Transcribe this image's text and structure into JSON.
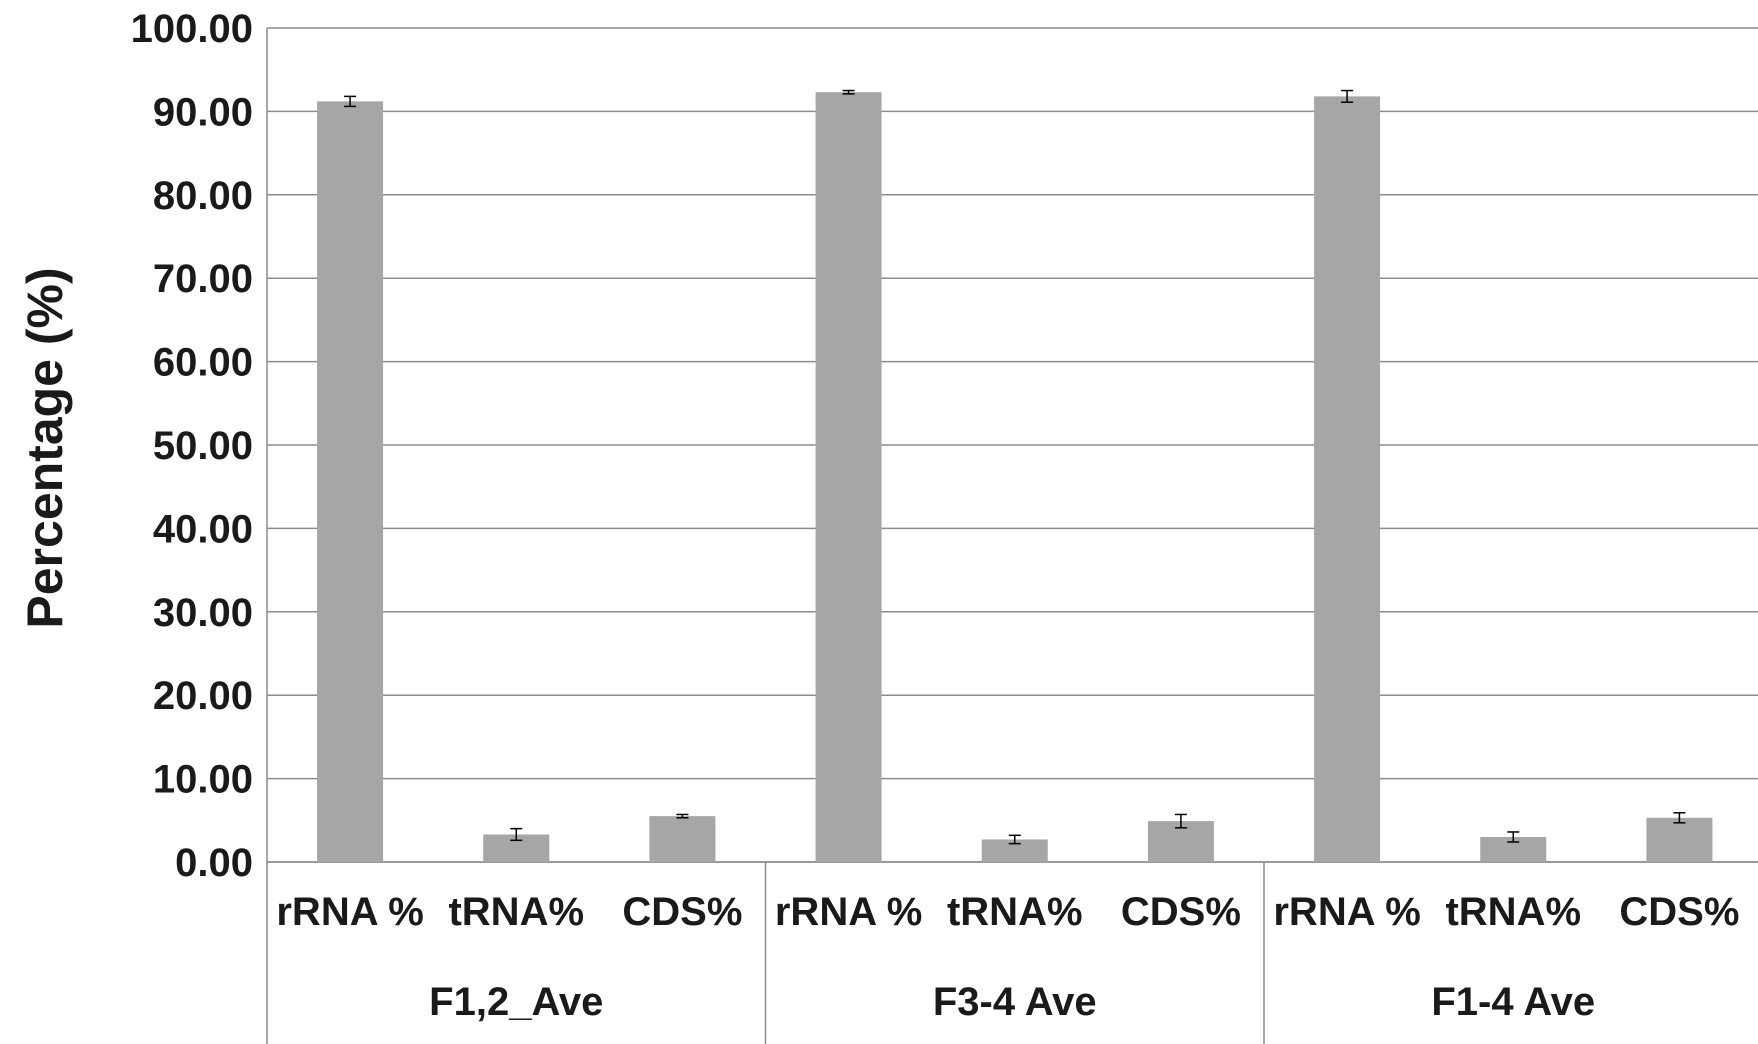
{
  "chart_data": {
    "type": "bar",
    "ylabel": "Percentage (%)",
    "ylim": [
      0,
      100
    ],
    "ytick_step": 10,
    "ytick_labels": [
      "0.00",
      "10.00",
      "20.00",
      "30.00",
      "40.00",
      "50.00",
      "60.00",
      "70.00",
      "80.00",
      "90.00",
      "100.00"
    ],
    "grid": true,
    "bar_color": "#a6a6a6",
    "groups": [
      {
        "label": "F1,2_Ave",
        "categories": [
          "rRNA %",
          "tRNA%",
          "CDS%"
        ],
        "values": [
          91.2,
          3.3,
          5.5
        ],
        "errors": [
          0.6,
          0.7,
          0.2
        ]
      },
      {
        "label": "F3-4 Ave",
        "categories": [
          "rRNA %",
          "tRNA%",
          "CDS%"
        ],
        "values": [
          92.3,
          2.7,
          4.9
        ],
        "errors": [
          0.2,
          0.5,
          0.8
        ]
      },
      {
        "label": "F1-4 Ave",
        "categories": [
          "rRNA %",
          "tRNA%",
          "CDS%"
        ],
        "values": [
          91.8,
          3.0,
          5.3
        ],
        "errors": [
          0.7,
          0.6,
          0.6
        ]
      }
    ]
  }
}
